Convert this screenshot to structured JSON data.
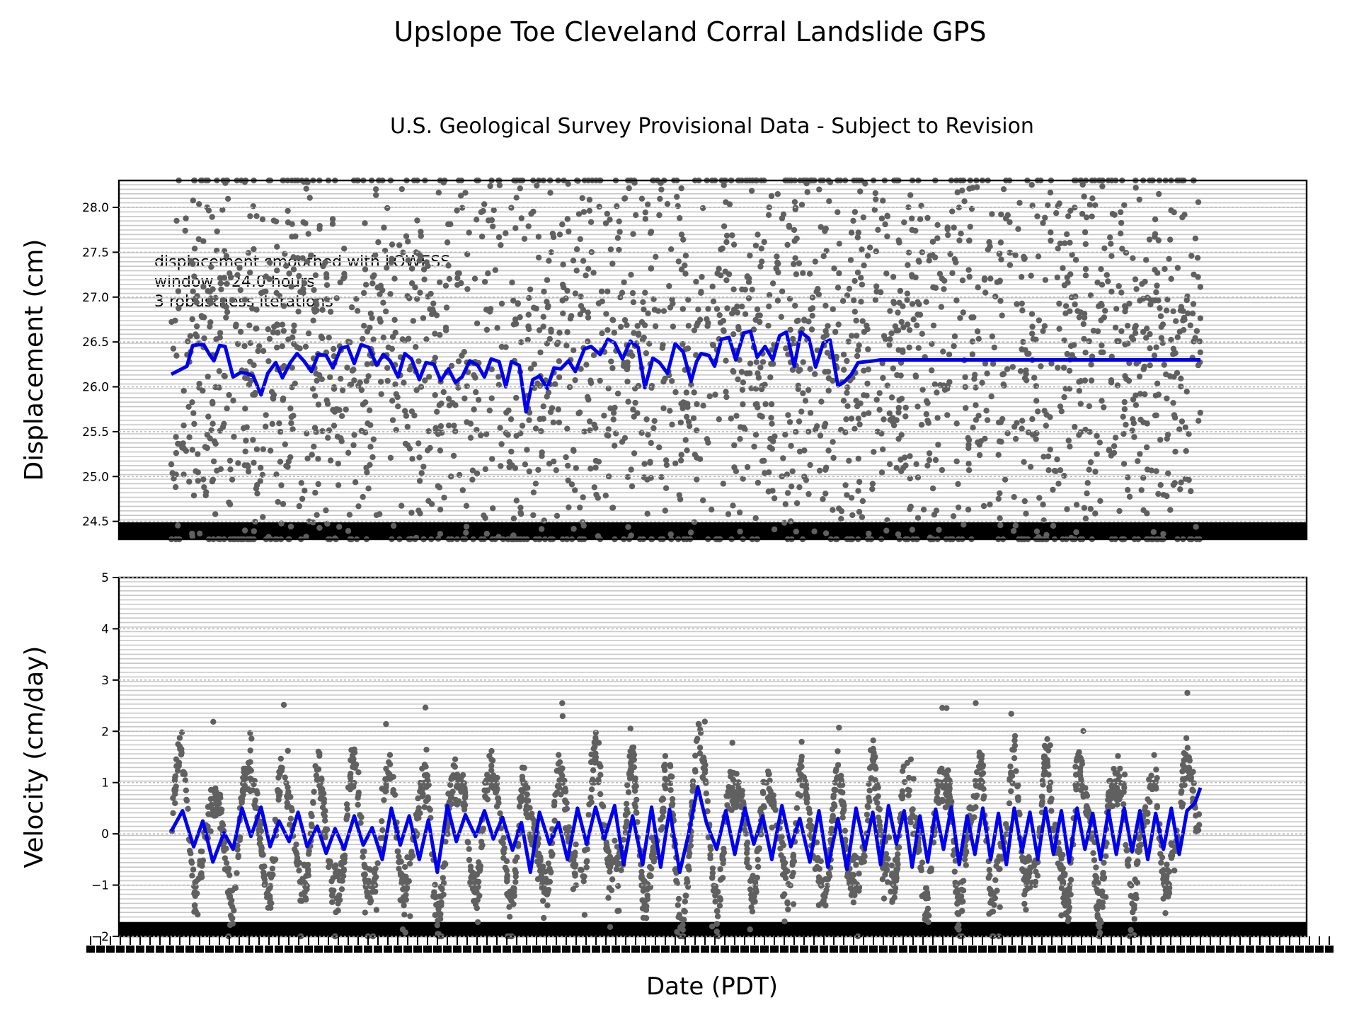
{
  "title": "Upslope Toe Cleveland Corral Landslide GPS",
  "subtitle": "U.S. Geological Survey Provisional Data - Subject to Revision",
  "xlabel": "Date (PDT)",
  "annotation": [
    "displacement smoothed with LOWESS",
    "window =24.0 hours",
    "3 robustness iterations"
  ],
  "colors": {
    "points": "#606060",
    "smooth": "#0000ee",
    "grid": "#c8c8c8",
    "axis": "#000000"
  },
  "chart_data": [
    {
      "type": "scatter",
      "name": "displacement",
      "ylabel": "Displacement (cm)",
      "ylim": [
        24.3,
        28.3
      ],
      "yticks": [
        24.5,
        25.0,
        25.5,
        26.0,
        26.5,
        27.0,
        27.5,
        28.0
      ],
      "ytick_labels": [
        "24.5",
        "25.0",
        "25.5",
        "26.0",
        "26.5",
        "27.0",
        "27.5",
        "28.0"
      ],
      "grid": true,
      "smoothed_series": {
        "x": [
          0.0,
          0.53,
          0.93,
          1.27,
          1.6,
          1.93,
          2.27,
          2.53,
          2.87,
          3.2,
          3.67,
          4.13,
          4.47,
          4.87,
          5.33,
          5.73,
          6.2,
          6.6,
          7.07,
          7.47,
          7.87,
          8.33,
          8.73,
          9.2,
          9.6,
          10.07,
          10.47,
          10.87,
          11.27,
          11.73,
          12.2,
          12.6,
          13.0,
          13.47,
          13.87,
          14.27,
          14.73,
          15.13,
          15.6,
          16.0,
          16.47,
          16.87,
          17.27,
          17.73,
          18.2,
          18.6,
          19.0,
          19.47,
          19.87,
          20.2,
          20.67,
          21.07,
          21.47,
          21.87,
          22.33,
          22.73,
          23.13,
          23.6,
          24.0,
          24.53,
          24.93,
          25.47,
          25.93,
          26.33,
          26.8,
          27.27,
          27.73,
          28.13,
          28.6,
          29.0,
          29.47,
          29.93,
          30.4,
          30.87,
          31.2,
          31.47,
          31.93,
          32.27,
          32.67,
          33.13,
          33.53,
          34.0,
          34.4,
          34.8,
          35.27,
          35.73,
          36.13,
          36.53,
          37.0,
          37.4,
          37.87,
          38.27,
          38.73,
          39.13,
          39.6,
          40.0,
          40.4,
          40.8,
          41.27,
          41.73,
          42.13,
          42.53,
          42.93,
          43.33,
          43.8,
          44.27,
          44.73,
          45.2,
          45.6,
          46.0,
          46.47,
          46.87,
          47.4,
          47.8,
          48.2,
          48.67,
          49.07,
          49.53,
          49.93,
          50.33,
          50.8,
          51.2,
          51.6,
          52.0,
          52.47,
          52.93,
          53.33,
          53.73,
          54.2,
          54.67,
          55.13,
          55.6,
          56.0,
          56.4,
          56.87,
          57.27,
          57.73,
          58.13,
          58.53,
          58.93,
          59.33,
          59.73,
          60.13,
          60.6,
          61.13
        ],
        "y": [
          26.14,
          26.19,
          26.23,
          26.46,
          26.47,
          26.47,
          26.36,
          26.29,
          26.46,
          26.45,
          26.11,
          26.16,
          26.15,
          26.12,
          25.91,
          26.15,
          26.27,
          26.1,
          26.27,
          26.37,
          26.29,
          26.17,
          26.36,
          26.35,
          26.21,
          26.43,
          26.45,
          26.26,
          26.47,
          26.44,
          26.24,
          26.36,
          26.29,
          26.11,
          26.37,
          26.31,
          26.08,
          26.27,
          26.25,
          26.07,
          26.2,
          26.05,
          26.11,
          26.29,
          26.24,
          26.11,
          26.31,
          26.28,
          26.0,
          26.28,
          26.24,
          25.72,
          26.08,
          26.12,
          25.98,
          26.21,
          26.2,
          26.29,
          26.17,
          26.42,
          26.45,
          26.36,
          26.53,
          26.49,
          26.31,
          26.51,
          26.44,
          25.99,
          26.32,
          26.27,
          26.15,
          26.48,
          26.39,
          26.06,
          26.28,
          26.37,
          26.35,
          26.23,
          26.53,
          26.55,
          26.3,
          26.6,
          26.62,
          26.33,
          26.45,
          26.3,
          26.57,
          26.61,
          26.23,
          26.61,
          26.54,
          26.22,
          26.49,
          26.52,
          26.01,
          26.06,
          26.14,
          26.27,
          26.28,
          26.29,
          26.3,
          26.3,
          26.3,
          26.3,
          26.3,
          26.3,
          26.3,
          26.3,
          26.3,
          26.3,
          26.3,
          26.3,
          26.3,
          26.3,
          26.3,
          26.3,
          26.3,
          26.3,
          26.3,
          26.3,
          26.3,
          26.3,
          26.3,
          26.3,
          26.3,
          26.3,
          26.3,
          26.3,
          26.3,
          26.3,
          26.3,
          26.3,
          26.3,
          26.3,
          26.3,
          26.3,
          26.3,
          26.3,
          26.3,
          26.3,
          26.3,
          26.3,
          26.3,
          26.3,
          26.3
        ]
      }
    },
    {
      "type": "scatter",
      "name": "velocity",
      "ylabel": "Velocity (cm/day)",
      "ylim": [
        -2,
        5
      ],
      "yticks": [
        -2,
        -1,
        0,
        1,
        2,
        3,
        4,
        5
      ],
      "ytick_labels": [
        "−2",
        "−1",
        "0",
        "1",
        "2",
        "3",
        "4",
        "5"
      ],
      "grid": true,
      "smoothed_series": {
        "x": [
          0.0,
          0.67,
          1.33,
          1.87,
          2.47,
          3.13,
          3.67,
          4.2,
          4.73,
          5.33,
          5.87,
          6.4,
          7.0,
          7.53,
          8.07,
          8.67,
          9.2,
          9.73,
          10.27,
          10.87,
          11.4,
          11.93,
          12.53,
          13.07,
          13.6,
          14.13,
          14.73,
          15.27,
          15.8,
          16.4,
          16.93,
          17.47,
          18.07,
          18.6,
          19.13,
          19.67,
          20.27,
          20.8,
          21.33,
          21.87,
          22.47,
          23.0,
          23.53,
          24.13,
          24.67,
          25.2,
          25.73,
          26.33,
          26.87,
          27.4,
          28.0,
          28.53,
          29.07,
          29.6,
          30.2,
          30.73,
          31.27,
          31.8,
          32.4,
          32.93,
          33.47,
          34.07,
          34.6,
          35.13,
          35.67,
          36.27,
          36.8,
          37.33,
          37.93,
          38.47,
          39.0,
          39.6,
          40.13,
          40.67,
          41.2,
          41.67,
          42.13,
          42.6,
          43.07,
          43.53,
          44.0,
          44.47,
          44.93,
          45.4,
          45.87,
          46.33,
          46.8,
          47.27,
          47.73,
          48.2,
          48.67,
          49.13,
          49.6,
          50.07,
          50.53,
          51.0,
          51.47,
          51.93,
          52.4,
          52.87,
          53.33,
          53.8,
          54.27,
          54.73,
          55.2,
          55.67,
          56.13,
          56.6,
          57.07,
          57.53,
          58.0,
          58.47,
          58.93,
          59.4,
          59.87,
          60.33,
          60.8,
          61.13
        ],
        "y": [
          0.05,
          0.45,
          -0.25,
          0.25,
          -0.55,
          0.02,
          -0.3,
          0.5,
          -0.05,
          0.52,
          -0.25,
          0.25,
          -0.15,
          0.42,
          -0.25,
          0.15,
          -0.38,
          0.1,
          -0.3,
          0.35,
          -0.22,
          0.12,
          -0.5,
          0.5,
          -0.22,
          0.35,
          -0.5,
          0.27,
          -0.75,
          0.55,
          -0.15,
          0.37,
          -0.05,
          0.45,
          -0.1,
          0.32,
          -0.32,
          0.22,
          -0.75,
          0.42,
          -0.2,
          0.22,
          -0.5,
          0.5,
          -0.2,
          0.52,
          -0.1,
          0.55,
          -0.6,
          0.35,
          -0.6,
          0.52,
          -0.65,
          0.48,
          -0.75,
          0.0,
          0.92,
          0.2,
          -0.3,
          0.45,
          -0.4,
          0.5,
          -0.2,
          0.35,
          -0.5,
          0.55,
          -0.25,
          0.3,
          -0.55,
          0.45,
          -0.65,
          0.3,
          -0.7,
          0.5,
          -0.3,
          0.42,
          -0.6,
          0.55,
          -0.2,
          0.45,
          -0.65,
          0.35,
          -0.55,
          0.48,
          -0.3,
          0.52,
          -0.6,
          0.35,
          -0.4,
          0.5,
          -0.5,
          0.4,
          -0.6,
          0.5,
          -0.35,
          0.42,
          -0.5,
          0.5,
          -0.4,
          0.45,
          -0.55,
          0.5,
          -0.3,
          0.4,
          -0.5,
          0.45,
          -0.4,
          0.5,
          -0.35,
          0.45,
          -0.5,
          0.4,
          -0.3,
          0.5,
          -0.4,
          0.45,
          0.6,
          0.9
        ]
      }
    }
  ]
}
